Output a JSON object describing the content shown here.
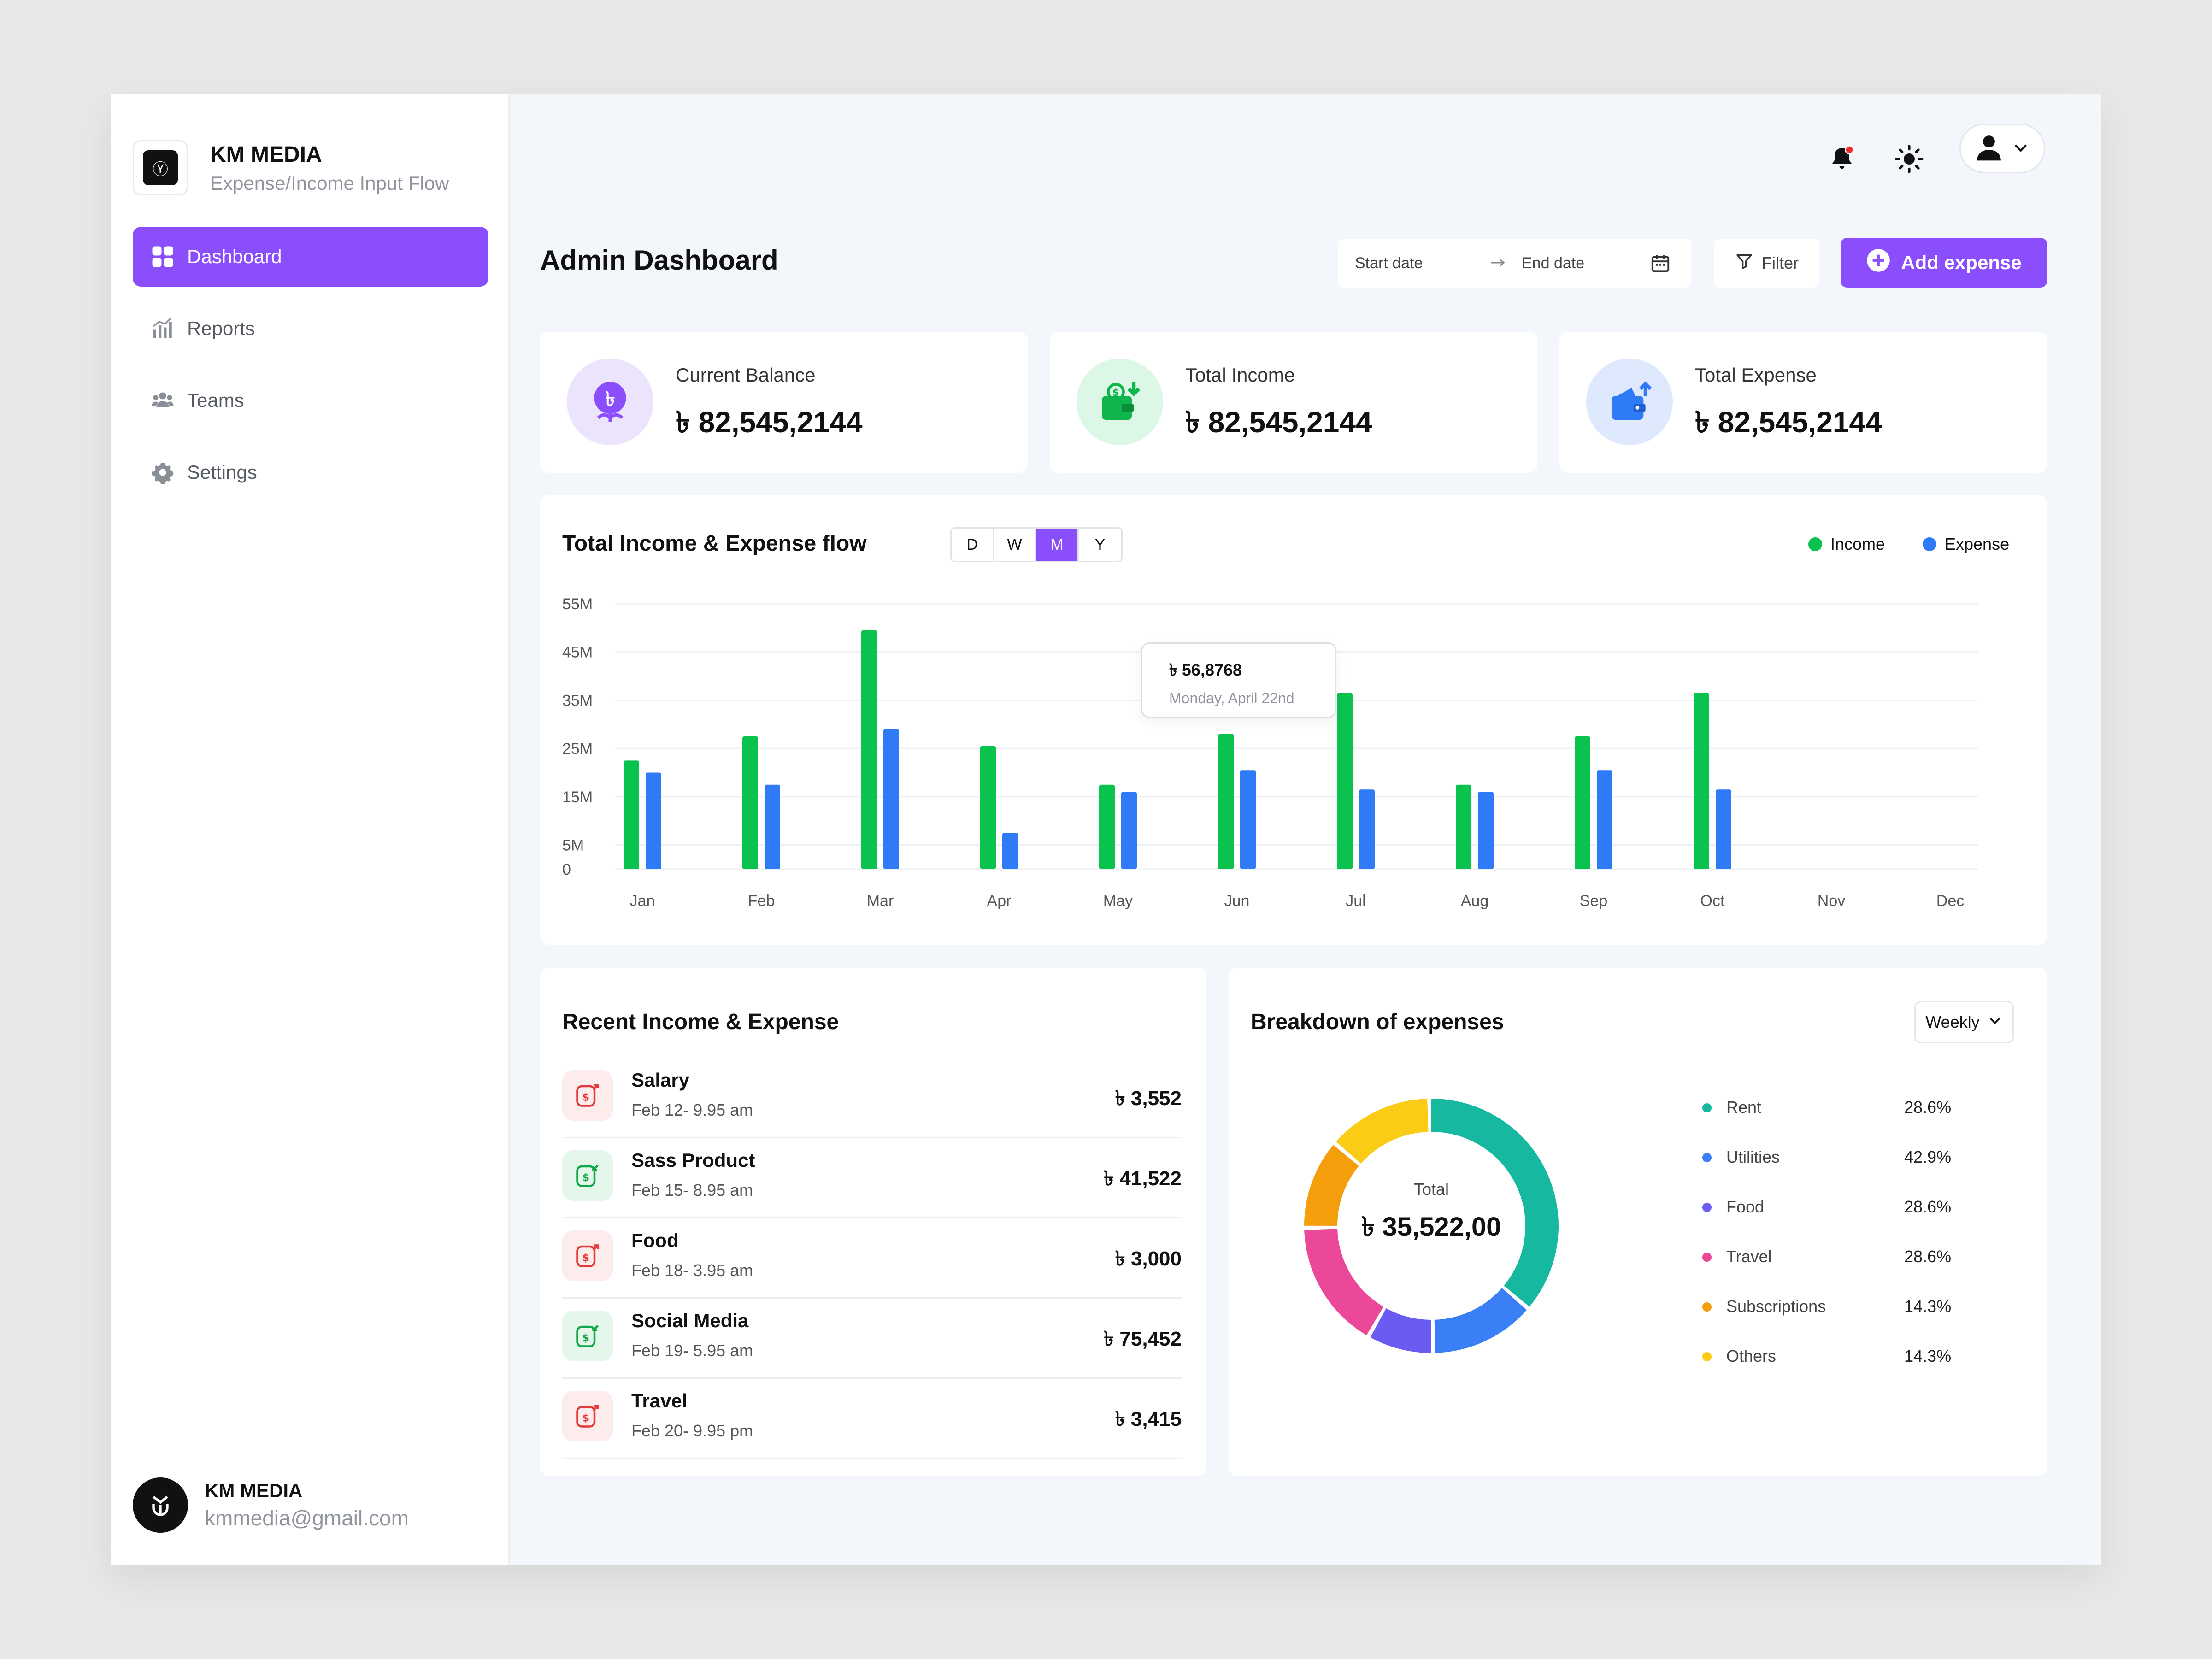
{
  "brand": {
    "title": "KM MEDIA",
    "subtitle": "Expense/Income Input Flow",
    "logo_glyph": "Ⓨ"
  },
  "nav": [
    {
      "label": "Dashboard",
      "icon": "grid-icon",
      "active": true
    },
    {
      "label": "Reports",
      "icon": "bar-chart-icon",
      "active": false
    },
    {
      "label": "Teams",
      "icon": "users-icon",
      "active": false
    },
    {
      "label": "Settings",
      "icon": "gear-icon",
      "active": false
    }
  ],
  "user": {
    "name": "KM MEDIA",
    "email": "kmmedia@gmail.com"
  },
  "header": {
    "title": "Admin Dashboard",
    "start_date_placeholder": "Start date",
    "end_date_placeholder": "End date",
    "filter_label": "Filter",
    "add_label": "Add expense",
    "accent": "#8b4efc"
  },
  "stats": [
    {
      "label": "Current Balance",
      "value": "৳ 82,545,2144",
      "icon": "taka-coin-icon",
      "color": "#ece3fd"
    },
    {
      "label": "Total Income",
      "value": "৳ 82,545,2144",
      "icon": "wallet-in-icon",
      "color": "#dcf7e6"
    },
    {
      "label": "Total Expense",
      "value": "৳ 82,545,2144",
      "icon": "wallet-out-icon",
      "color": "#dfe9fd"
    }
  ],
  "flow": {
    "title": "Total Income & Expense flow",
    "periods": [
      "D",
      "W",
      "M",
      "Y"
    ],
    "active_period": "M",
    "tooltip": {
      "value": "৳ 56,8768",
      "date": "Monday, April 22nd"
    }
  },
  "chart_data": {
    "type": "bar",
    "title": "Total Income & Expense flow",
    "categories": [
      "Jan",
      "Feb",
      "Mar",
      "Apr",
      "May",
      "Jun",
      "Jul",
      "Aug",
      "Sep",
      "Oct",
      "Nov",
      "Dec"
    ],
    "series": [
      {
        "name": "Income",
        "color": "#0ac24e",
        "values": [
          22.5,
          27.5,
          49.5,
          25.5,
          17.5,
          28,
          36.5,
          17.5,
          27.5,
          36.5,
          null,
          null
        ]
      },
      {
        "name": "Expense",
        "color": "#2f7af6",
        "values": [
          20,
          17.5,
          29,
          7.5,
          16,
          20.5,
          16.5,
          16,
          20.5,
          16.5,
          null,
          null
        ]
      }
    ],
    "y_ticks": [
      "0",
      "5M",
      "15M",
      "25M",
      "35M",
      "45M",
      "55M"
    ],
    "ylim": [
      0,
      55
    ],
    "grid": true,
    "legend": "top-right"
  },
  "recent": {
    "title": "Recent Income & Expense",
    "items": [
      {
        "title": "Salary",
        "date": "Feb 12- 9.95 am",
        "amount": "৳ 3,552",
        "type": "expense"
      },
      {
        "title": "Sass Product",
        "date": "Feb 15- 8.95 am",
        "amount": "৳ 41,522",
        "type": "income"
      },
      {
        "title": "Food",
        "date": "Feb 18- 3.95 am",
        "amount": "৳ 3,000",
        "type": "expense"
      },
      {
        "title": "Social Media",
        "date": "Feb 19- 5.95 am",
        "amount": "৳ 75,452",
        "type": "income"
      },
      {
        "title": "Travel",
        "date": "Feb 20- 9.95 pm",
        "amount": "৳ 3,415",
        "type": "expense"
      }
    ]
  },
  "breakdown": {
    "title": "Breakdown of expenses",
    "period": "Weekly",
    "total_label": "Total",
    "total_value": "৳ 35,522,00",
    "items": [
      {
        "name": "Rent",
        "pct": "28.6%",
        "color": "#16b8a0",
        "share": 0.365
      },
      {
        "name": "Utilities",
        "pct": "42.9%",
        "color": "#3a7ff5",
        "share": 0.135
      },
      {
        "name": "Food",
        "pct": "28.6%",
        "color": "#6a5cf0",
        "share": 0.085
      },
      {
        "name": "Travel",
        "pct": "28.6%",
        "color": "#ec4899",
        "share": 0.165
      },
      {
        "name": "Subscriptions",
        "pct": "14.3%",
        "color": "#f59e0b",
        "share": 0.115
      },
      {
        "name": "Others",
        "pct": "14.3%",
        "color": "#facc15",
        "share": 0.135
      }
    ]
  }
}
